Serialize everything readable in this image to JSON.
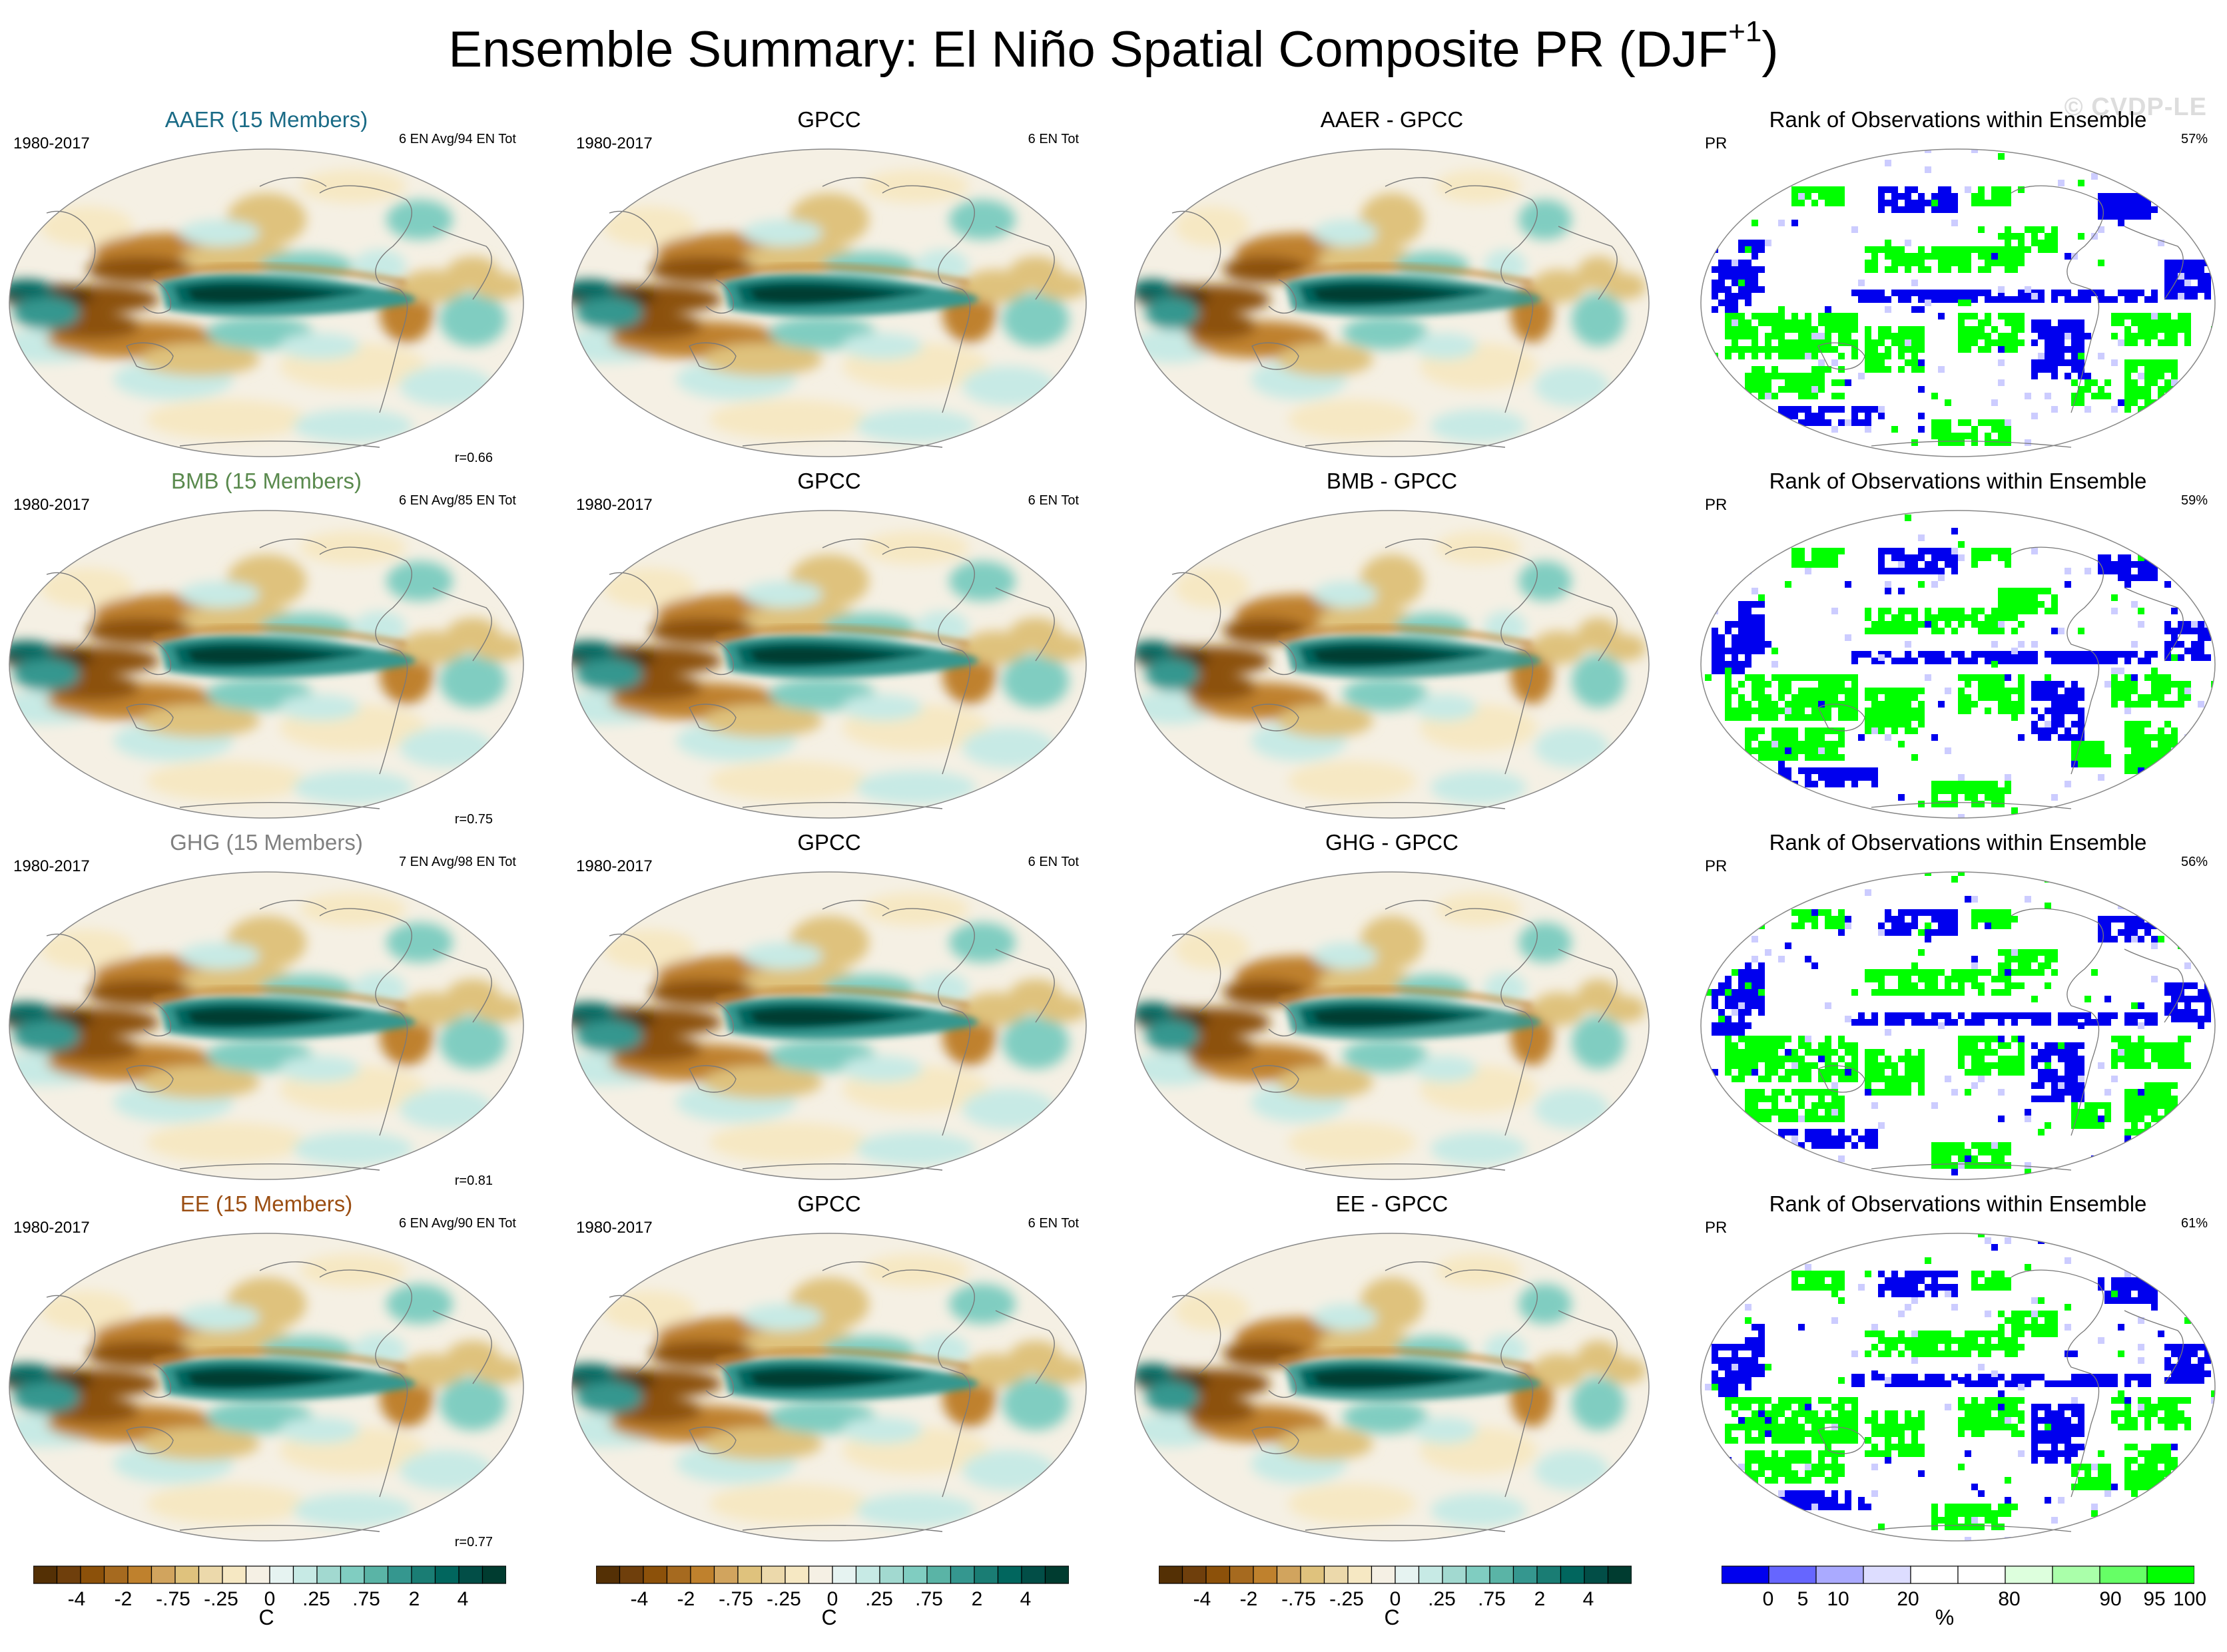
{
  "title": {
    "text": "Ensemble Summary: El Niño Spatial Composite PR (DJF",
    "sup": "+1",
    "close": ")"
  },
  "watermark": "© CVDP-LE",
  "colors": {
    "AAER": "#1a6b86",
    "BMB": "#5a8a4e",
    "GHG": "#808080",
    "EE": "#9b4e12",
    "rank_blue": "#0000ee",
    "rank_green": "#00ff00"
  },
  "rows": [
    {
      "model": {
        "title": "AAER (15 Members)",
        "period": "1980-2017",
        "count": "6 EN Avg/94 EN Tot",
        "r": "r=0.66"
      },
      "obs": {
        "title": "GPCC",
        "period": "1980-2017",
        "count": "6 EN Tot"
      },
      "diff": {
        "title": "AAER - GPCC"
      },
      "rank": {
        "title": "Rank of Observations within Ensemble",
        "var": "PR",
        "pct": "57%"
      }
    },
    {
      "model": {
        "title": "BMB (15 Members)",
        "period": "1980-2017",
        "count": "6 EN Avg/85 EN Tot",
        "r": "r=0.75"
      },
      "obs": {
        "title": "GPCC",
        "period": "1980-2017",
        "count": "6 EN Tot"
      },
      "diff": {
        "title": "BMB - GPCC"
      },
      "rank": {
        "title": "Rank of Observations within Ensemble",
        "var": "PR",
        "pct": "59%"
      }
    },
    {
      "model": {
        "title": "GHG (15 Members)",
        "period": "1980-2017",
        "count": "7 EN Avg/98 EN Tot",
        "r": "r=0.81"
      },
      "obs": {
        "title": "GPCC",
        "period": "1980-2017",
        "count": "6 EN Tot"
      },
      "diff": {
        "title": "GHG - GPCC"
      },
      "rank": {
        "title": "Rank of Observations within Ensemble",
        "var": "PR",
        "pct": "56%"
      }
    },
    {
      "model": {
        "title": "EE (15 Members)",
        "period": "1980-2017",
        "count": "6 EN Avg/90 EN Tot",
        "r": "r=0.77"
      },
      "obs": {
        "title": "GPCC",
        "period": "1980-2017",
        "count": "6 EN Tot"
      },
      "diff": {
        "title": "EE - GPCC"
      },
      "rank": {
        "title": "Rank of Observations within Ensemble",
        "var": "PR",
        "pct": "61%"
      }
    }
  ],
  "colorbars": {
    "precip": {
      "ticks": [
        "-4",
        "-2",
        "-.75",
        "-.25",
        "0",
        ".25",
        ".75",
        "2",
        "4"
      ],
      "unit": "C",
      "colors": [
        "#543005",
        "#6f3f0c",
        "#8c510a",
        "#a66a1f",
        "#bf812d",
        "#d1a45e",
        "#dfc27d",
        "#ecd9ab",
        "#f6e8c3",
        "#f5f0e4",
        "#e6f3f1",
        "#c7eae5",
        "#a2d9d0",
        "#80cdc1",
        "#5ab4a6",
        "#35978f",
        "#1a7d74",
        "#01665e",
        "#024e47",
        "#003c30"
      ]
    },
    "rank": {
      "ticks": [
        "0",
        "5",
        "10",
        "20",
        "80",
        "90",
        "95",
        "100"
      ],
      "unit": "%",
      "colors": [
        "#0000ee",
        "#6666ff",
        "#aaaaff",
        "#ddddff",
        "#ffffff",
        "#ffffff",
        "#ddffdd",
        "#aaffaa",
        "#66ff66",
        "#00ff00"
      ]
    }
  }
}
